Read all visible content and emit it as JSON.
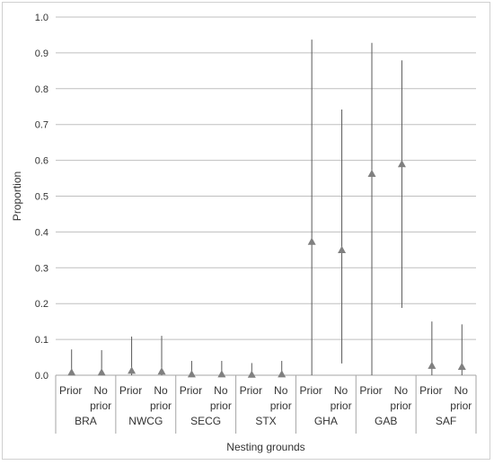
{
  "chart_data": {
    "type": "scatter",
    "title": "",
    "xlabel": "Nesting grounds",
    "ylabel": "Proportion",
    "ylim": [
      0,
      1.0
    ],
    "yticks": [
      "0.0",
      "0.1",
      "0.2",
      "0.3",
      "0.4",
      "0.5",
      "0.6",
      "0.7",
      "0.8",
      "0.9",
      "1.0"
    ],
    "grid": true,
    "marker": "triangle",
    "marker_color": "#808080",
    "line_color": "#595959",
    "grid_color": "#bfbfbf",
    "groups": [
      {
        "name": "BRA",
        "items": [
          {
            "label": [
              "Prior"
            ],
            "value": 0.008,
            "low": 0.0,
            "high": 0.072
          },
          {
            "label": [
              "No",
              "prior"
            ],
            "value": 0.008,
            "low": 0.0,
            "high": 0.07
          }
        ]
      },
      {
        "name": "NWCG",
        "items": [
          {
            "label": [
              "Prior"
            ],
            "value": 0.013,
            "low": 0.0,
            "high": 0.108
          },
          {
            "label": [
              "No",
              "prior"
            ],
            "value": 0.011,
            "low": 0.0,
            "high": 0.11
          }
        ]
      },
      {
        "name": "SECG",
        "items": [
          {
            "label": [
              "Prior"
            ],
            "value": 0.003,
            "low": 0.0,
            "high": 0.04
          },
          {
            "label": [
              "No",
              "prior"
            ],
            "value": 0.003,
            "low": 0.0,
            "high": 0.04
          }
        ]
      },
      {
        "name": "STX",
        "items": [
          {
            "label": [
              "Prior"
            ],
            "value": 0.002,
            "low": 0.0,
            "high": 0.034
          },
          {
            "label": [
              "No",
              "prior"
            ],
            "value": 0.003,
            "low": 0.0,
            "high": 0.04
          }
        ]
      },
      {
        "name": "GHA",
        "items": [
          {
            "label": [
              "Prior"
            ],
            "value": 0.373,
            "low": 0.0,
            "high": 0.937
          },
          {
            "label": [
              "No",
              "prior"
            ],
            "value": 0.35,
            "low": 0.033,
            "high": 0.742
          }
        ]
      },
      {
        "name": "GAB",
        "items": [
          {
            "label": [
              "Prior"
            ],
            "value": 0.563,
            "low": 0.0,
            "high": 0.928
          },
          {
            "label": [
              "No",
              "prior"
            ],
            "value": 0.59,
            "low": 0.188,
            "high": 0.879
          }
        ]
      },
      {
        "name": "SAF",
        "items": [
          {
            "label": [
              "Prior"
            ],
            "value": 0.027,
            "low": 0.0,
            "high": 0.15
          },
          {
            "label": [
              "No",
              "prior"
            ],
            "value": 0.024,
            "low": 0.0,
            "high": 0.142
          }
        ]
      }
    ]
  }
}
